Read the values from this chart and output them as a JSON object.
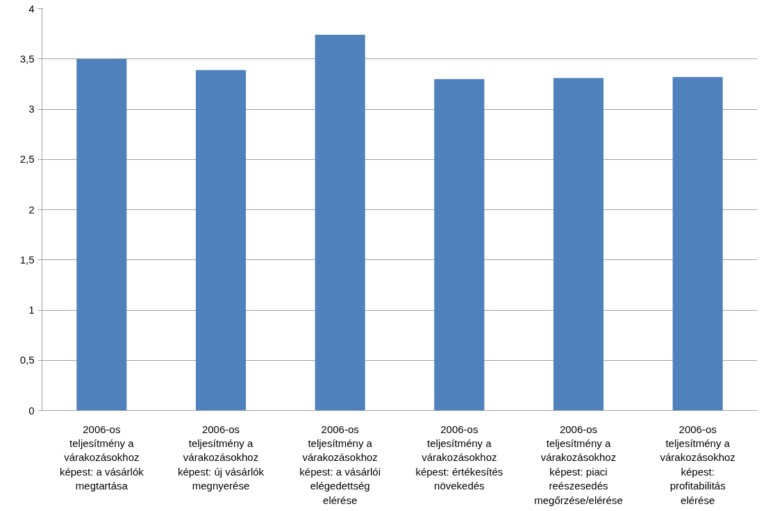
{
  "chart_data": {
    "type": "bar",
    "categories": [
      "2006-os teljesítmény a várakozásokhoz képest: a vásárlók megtartása",
      "2006-os teljesítmény a várakozásokhoz képest: új vásárlók megnyerése",
      "2006-os teljesítmény a várakozásokhoz képest: a vásárlói elégedettség elérése",
      "2006-os teljesítmény a várakozásokhoz képest: értékesítés növekedés",
      "2006-os teljesítmény a várakozásokhoz képest: piaci reészesedés megőrzése/elérése",
      "2006-os teljesítmény a várakozásokhoz képest: profitabilitás elérése"
    ],
    "values": [
      3.5,
      3.39,
      3.74,
      3.3,
      3.31,
      3.32
    ],
    "color": "#4f81bd",
    "ylim": [
      0,
      4
    ],
    "yticks": [
      0,
      {
        "value": 0.5,
        "label": "0,5"
      },
      1,
      {
        "value": 1.5,
        "label": "1,5"
      },
      2,
      {
        "value": 2.5,
        "label": "2,5"
      },
      3,
      {
        "value": 3.5,
        "label": "3,5"
      },
      4
    ],
    "grid": "y"
  }
}
